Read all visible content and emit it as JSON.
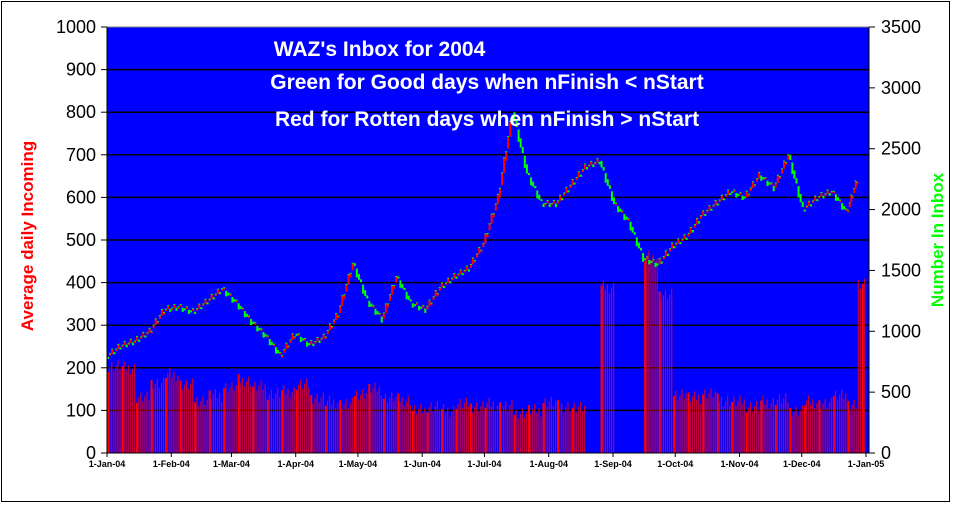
{
  "chart_data": {
    "type": "bar+line",
    "title": "WAZ's Inbox for 2004",
    "subtitle_lines": [
      "Green for Good days when nFinish < nStart",
      "Red for Rotten days when nFinish > nStart"
    ],
    "xlabel": "",
    "ylabel_left": "Average daily Incoming",
    "ylabel_right": "Number In Inbox",
    "ylim_left": [
      0,
      1000
    ],
    "ylim_right": [
      0,
      3500
    ],
    "yticks_left": [
      "0",
      "100",
      "200",
      "300",
      "400",
      "500",
      "600",
      "700",
      "800",
      "900",
      "1000"
    ],
    "yticks_right": [
      "0",
      "500",
      "1000",
      "1500",
      "2000",
      "2500",
      "3000",
      "3500"
    ],
    "xticks": [
      "1-Jan-04",
      "1-Feb-04",
      "1-Mar-04",
      "1-Apr-04",
      "1-May-04",
      "1-Jun-04",
      "1-Jul-04",
      "1-Aug-04",
      "1-Sep-04",
      "1-Oct-04",
      "1-Nov-04",
      "1-Dec-04",
      "1-Jan-05"
    ],
    "grid": true,
    "legend": "none",
    "colors": {
      "plot_bg": "#0000ff",
      "bar": "#ff0000",
      "good_days": "#00ff00",
      "rotten_days": "#ff0000",
      "gridline": "#000000",
      "title_text": "#ffffff"
    },
    "series": [
      {
        "name": "Average daily Incoming",
        "axis": "left",
        "kind": "bar",
        "x_day": [
          0,
          7,
          14,
          21,
          28,
          35,
          42,
          49,
          56,
          63,
          70,
          77,
          84,
          91,
          98,
          105,
          112,
          119,
          126,
          133,
          140,
          147,
          154,
          161,
          168,
          175,
          182,
          189,
          196,
          203,
          210,
          217,
          224,
          231,
          238,
          245,
          252,
          259,
          266,
          273,
          280,
          287,
          294,
          301,
          308,
          315,
          322,
          329,
          336,
          343,
          350,
          357,
          362
        ],
        "values": [
          205,
          200,
          130,
          165,
          185,
          160,
          125,
          135,
          155,
          170,
          155,
          140,
          145,
          160,
          130,
          120,
          115,
          140,
          150,
          130,
          125,
          100,
          110,
          100,
          115,
          110,
          115,
          110,
          95,
          100,
          120,
          110,
          105,
          0,
          390,
          0,
          0,
          460,
          370,
          140,
          130,
          140,
          125,
          120,
          110,
          120,
          125,
          100,
          120,
          115,
          140,
          110,
          400
        ]
      },
      {
        "name": "Number In Inbox",
        "axis": "right",
        "kind": "line",
        "x_day": [
          0,
          7,
          14,
          21,
          28,
          35,
          42,
          49,
          56,
          63,
          70,
          77,
          84,
          91,
          98,
          105,
          112,
          119,
          126,
          133,
          140,
          147,
          154,
          161,
          168,
          175,
          182,
          189,
          196,
          203,
          210,
          217,
          224,
          231,
          238,
          245,
          252,
          259,
          266,
          273,
          280,
          287,
          294,
          301,
          308,
          315,
          322,
          329,
          336,
          343,
          350,
          357,
          362
        ],
        "values": [
          790,
          880,
          920,
          1000,
          1180,
          1200,
          1160,
          1250,
          1350,
          1230,
          1080,
          960,
          800,
          980,
          890,
          950,
          1150,
          1560,
          1250,
          1100,
          1450,
          1230,
          1180,
          1360,
          1450,
          1520,
          1720,
          2100,
          2800,
          2300,
          2050,
          2050,
          2200,
          2350,
          2400,
          2050,
          1900,
          1600,
          1550,
          1700,
          1780,
          1950,
          2050,
          2150,
          2100,
          2280,
          2180,
          2450,
          2000,
          2100,
          2150,
          1980,
          2250
        ],
        "colors_by_segment": "green when decreasing (good), red when increasing (rotten)"
      }
    ]
  },
  "labels": {
    "title": "WAZ's Inbox for 2004",
    "line2": "Green for Good days when nFinish < nStart",
    "line3": "Red for Rotten days when nFinish > nStart",
    "ylabel_left": "Average daily Incoming",
    "ylabel_right": "Number In Inbox"
  }
}
